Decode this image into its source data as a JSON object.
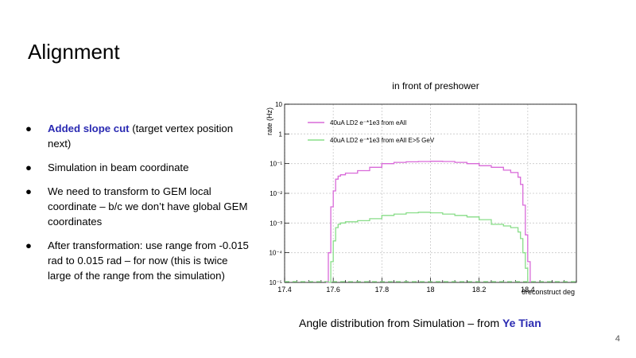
{
  "slide": {
    "title": "Alignment",
    "page_number": "4",
    "bullet_symbol": "●",
    "bullets": [
      {
        "highlight": "Added slope cut",
        "text": " (target vertex position next)"
      },
      {
        "highlight": "",
        "text": "Simulation in beam coordinate"
      },
      {
        "highlight": "",
        "text": "We need to transform to GEM local coordinate – b/c we don’t have global GEM coordinates"
      },
      {
        "highlight": "",
        "text": "After transformation: use range from -0.015 rad to 0.015 rad – for now (this is twice large of the range from the simulation)"
      }
    ],
    "caption": {
      "prefix": "Angle distribution from Simulation  – from ",
      "highlight": "Ye Tian"
    },
    "accent_color": "#2a2ab2"
  },
  "chart_data": {
    "type": "line",
    "title": "in front of preshower",
    "xlabel": "θreconstruct deg",
    "ylabel": "rate (Hz)",
    "xlim": [
      17.4,
      18.6
    ],
    "ylim": [
      1e-05,
      10
    ],
    "yscale": "log",
    "grid": true,
    "legend_position": "top-left",
    "x_ticks": [
      "17.4",
      "17.6",
      "17.8",
      "18",
      "18.2",
      "18.4"
    ],
    "y_ticks": [
      "10⁻⁵",
      "10⁻⁴",
      "10⁻³",
      "10⁻²",
      "10⁻¹",
      "1",
      "10"
    ],
    "series": [
      {
        "name": "40uA LD2 e⁻*1e3 from eAll",
        "color": "#d96ad9",
        "x": [
          17.57,
          17.58,
          17.59,
          17.6,
          17.61,
          17.62,
          17.63,
          17.65,
          17.7,
          17.75,
          17.8,
          17.85,
          17.9,
          17.95,
          18.0,
          18.05,
          18.1,
          18.15,
          18.2,
          18.25,
          18.3,
          18.33,
          18.36,
          18.37,
          18.38,
          18.39,
          18.4,
          18.41
        ],
        "y": [
          1e-05,
          0.0001,
          0.0035,
          0.012,
          0.03,
          0.038,
          0.042,
          0.048,
          0.058,
          0.075,
          0.1,
          0.11,
          0.115,
          0.118,
          0.12,
          0.118,
          0.11,
          0.1,
          0.085,
          0.075,
          0.06,
          0.05,
          0.035,
          0.02,
          0.004,
          0.0004,
          5e-05,
          1e-05
        ]
      },
      {
        "name": "40uA LD2 e⁻*1e3 from eAll E>5 GeV",
        "color": "#88dd88",
        "x": [
          17.58,
          17.59,
          17.6,
          17.61,
          17.62,
          17.63,
          17.65,
          17.7,
          17.75,
          17.8,
          17.85,
          17.9,
          17.95,
          18.0,
          18.05,
          18.1,
          18.15,
          18.2,
          18.25,
          18.3,
          18.33,
          18.36,
          18.37,
          18.38,
          18.39,
          18.4
        ],
        "y": [
          1e-05,
          5e-05,
          0.00025,
          0.0007,
          0.0009,
          0.001,
          0.0011,
          0.0012,
          0.0014,
          0.0018,
          0.002,
          0.0022,
          0.0023,
          0.0022,
          0.002,
          0.0018,
          0.0016,
          0.0013,
          0.0009,
          0.0008,
          0.0007,
          0.0005,
          0.0003,
          0.0001,
          3e-05,
          1e-05
        ]
      }
    ]
  }
}
